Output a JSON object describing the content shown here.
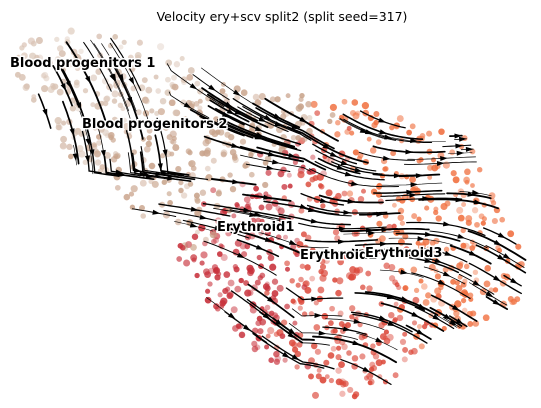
{
  "chart_data": {
    "type": "scatter",
    "title": "Velocity ery+scv split2 (split seed=317)",
    "axes_visible": false,
    "overlay": "velocity streamlines with arrowheads",
    "clusters": [
      {
        "name": "Blood progenitors 1",
        "color": "#d9c3b4"
      },
      {
        "name": "Blood progenitors 2",
        "color": "#c9a48c"
      },
      {
        "name": "Erythroid1",
        "color": "#c8323c"
      },
      {
        "name": "Erythroid2",
        "color": "#dc4a3c"
      },
      {
        "name": "Erythroid3",
        "color": "#f07040"
      }
    ]
  }
}
